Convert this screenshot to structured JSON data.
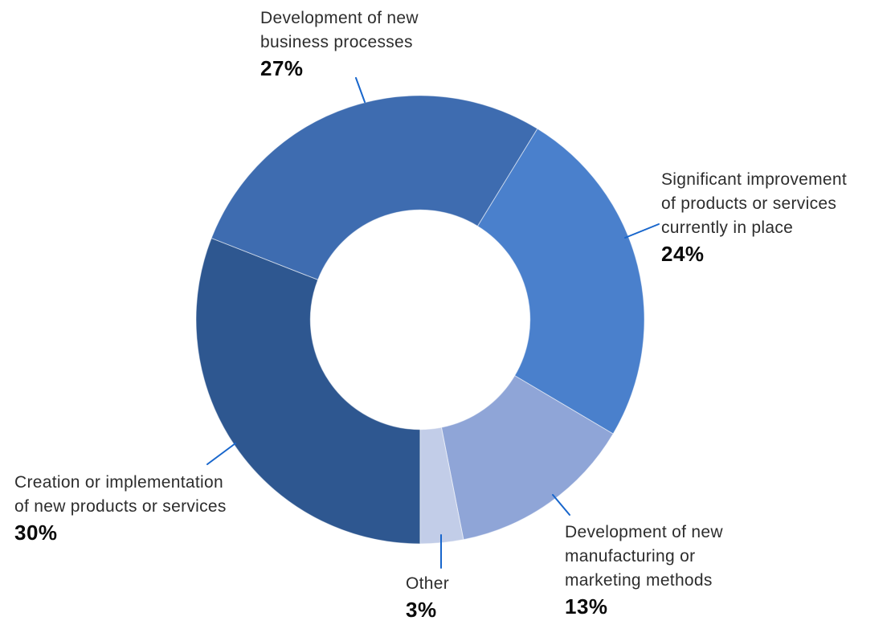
{
  "chart_data": {
    "type": "pie",
    "subtype": "donut",
    "legend": "none",
    "direction": "clockwise",
    "start_angle_deg": 180,
    "inner_radius_ratio": 0.49,
    "categories": [
      "Creation or implementation of new products or services",
      "Development of new business processes",
      "Significant improvement of products or services currently in place",
      "Development of new manufacturing or marketing methods",
      "Other"
    ],
    "values": [
      30,
      27,
      24,
      13,
      3
    ],
    "slices": [
      {
        "key": "creation",
        "label": "Creation or implementation of new products or services",
        "pct_label": "30%",
        "value": 30,
        "color": "#2e5790"
      },
      {
        "key": "business",
        "label": "Development of new business processes",
        "pct_label": "27%",
        "value": 27,
        "color": "#3e6cb0"
      },
      {
        "key": "improvement",
        "label": "Significant improvement of products or services currently in place",
        "pct_label": "24%",
        "value": 24,
        "color": "#4a80cc"
      },
      {
        "key": "manufacturing",
        "label": "Development of new manufacturing or marketing methods",
        "pct_label": "13%",
        "value": 13,
        "color": "#8fa5d7"
      },
      {
        "key": "other",
        "label": "Other",
        "pct_label": "3%",
        "value": 3,
        "color": "#c2cde8"
      }
    ],
    "leader_line_color": "#1866cc",
    "slice_divider_color": "rgba(255,255,255,0.55)"
  },
  "labels": {
    "business": {
      "lines": [
        "Development of new",
        "business processes"
      ],
      "pct": "27%"
    },
    "improvement": {
      "lines": [
        "Significant improvement",
        "of products or services",
        "currently in place"
      ],
      "pct": "24%"
    },
    "manufacturing": {
      "lines": [
        "Development of new",
        "manufacturing or",
        "marketing methods"
      ],
      "pct": "13%"
    },
    "other": {
      "lines": [
        "Other"
      ],
      "pct": "3%"
    },
    "creation": {
      "lines": [
        "Creation or implementation",
        "of new products or services"
      ],
      "pct": "30%"
    }
  }
}
